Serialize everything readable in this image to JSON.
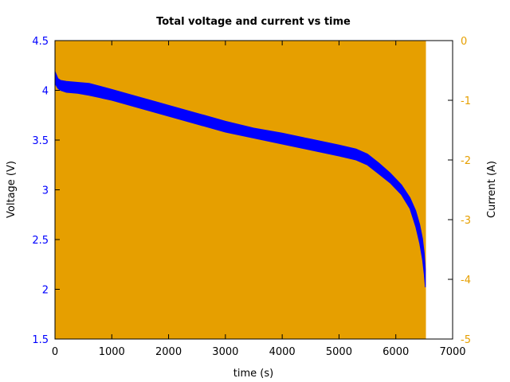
{
  "chart_data": {
    "type": "line",
    "title": "Total voltage and current vs time",
    "xlabel": "time (s)",
    "ylabel": "Voltage (V)",
    "y2label": "Current (A)",
    "xlim": [
      0,
      7000
    ],
    "ylim": [
      1.5,
      4.5
    ],
    "y2lim": [
      -5,
      0
    ],
    "xticks": [
      "0",
      "1000",
      "2000",
      "3000",
      "4000",
      "5000",
      "6000",
      "7000"
    ],
    "xtick_values": [
      0,
      1000,
      2000,
      3000,
      4000,
      5000,
      6000,
      7000
    ],
    "yticks": [
      "1.5",
      "2",
      "2.5",
      "3",
      "3.5",
      "4",
      "4.5"
    ],
    "ytick_values": [
      1.5,
      2,
      2.5,
      3,
      3.5,
      4,
      4.5
    ],
    "y2ticks": [
      "-5",
      "-4",
      "-3",
      "-2",
      "-1",
      "0"
    ],
    "y2tick_values": [
      -5,
      -4,
      -3,
      -2,
      -1,
      0
    ],
    "series": [
      {
        "name": "Voltage",
        "axis": "left",
        "color": "#0000ff",
        "x": [
          0,
          50,
          100,
          200,
          400,
          600,
          1000,
          1500,
          2000,
          2500,
          3000,
          3500,
          4000,
          4500,
          5000,
          5300,
          5500,
          5700,
          5900,
          6100,
          6250,
          6350,
          6420,
          6470,
          6500,
          6520
        ],
        "upper": [
          4.19,
          4.12,
          4.1,
          4.09,
          4.08,
          4.07,
          4.01,
          3.93,
          3.85,
          3.77,
          3.69,
          3.62,
          3.57,
          3.51,
          3.45,
          3.41,
          3.36,
          3.27,
          3.17,
          3.05,
          2.92,
          2.79,
          2.65,
          2.51,
          2.36,
          2.2
        ],
        "lower": [
          4.07,
          4.02,
          4.0,
          3.98,
          3.97,
          3.95,
          3.9,
          3.82,
          3.74,
          3.66,
          3.58,
          3.52,
          3.46,
          3.4,
          3.34,
          3.3,
          3.25,
          3.16,
          3.07,
          2.95,
          2.81,
          2.63,
          2.46,
          2.3,
          2.15,
          2.02
        ]
      },
      {
        "name": "Current",
        "axis": "right",
        "color": "#e69f00",
        "x": [
          0,
          6530
        ],
        "upper": [
          0,
          0
        ],
        "lower": [
          -5,
          -5
        ]
      }
    ]
  }
}
